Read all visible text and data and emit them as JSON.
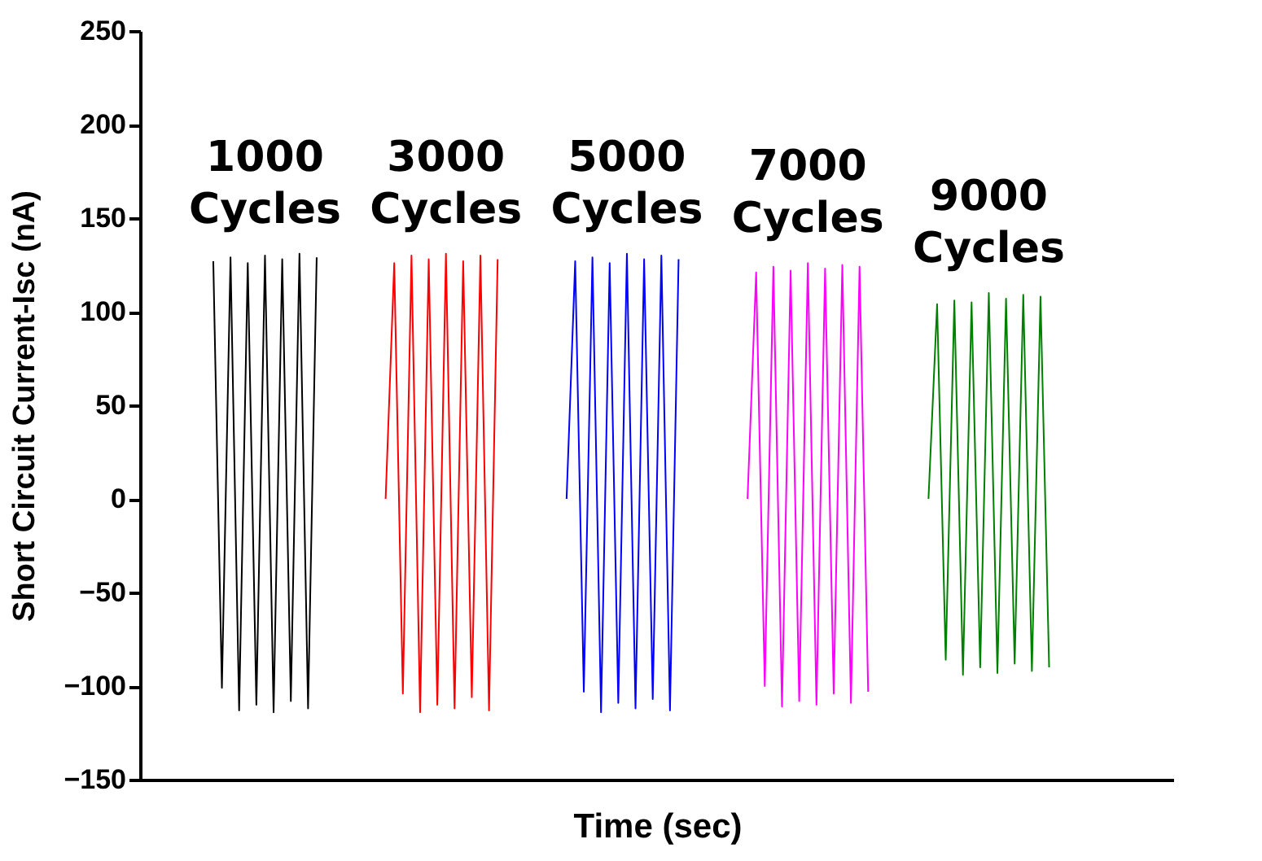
{
  "chart_data": {
    "type": "line",
    "xlabel": "Time (sec)",
    "ylabel": "Short Circuit Current-Isc (nA)",
    "ylim": [
      -150,
      250
    ],
    "yticks": [
      -150,
      -100,
      -50,
      0,
      50,
      100,
      150,
      200,
      250
    ],
    "grid": false,
    "legend": false,
    "tick_labels": "y",
    "marker": "none",
    "line_style": "solid",
    "categories": [
      null,
      null,
      null,
      null,
      null,
      null,
      null,
      null,
      null,
      null,
      null,
      null,
      null,
      null,
      null,
      null,
      null,
      null,
      null,
      null,
      null,
      null,
      null,
      null,
      null,
      null,
      null,
      null,
      null,
      null,
      null,
      null,
      null,
      null,
      null,
      null,
      null,
      null,
      null,
      null,
      null,
      null,
      null,
      null,
      null,
      null,
      null,
      null,
      null,
      null,
      null,
      null,
      null,
      null,
      null,
      null,
      null,
      null,
      null,
      null,
      null,
      null,
      null,
      null,
      null,
      null,
      null,
      null,
      null,
      null,
      null,
      null,
      null,
      null,
      null,
      null,
      null,
      null,
      null,
      null,
      null,
      null,
      null,
      null,
      null,
      null,
      null,
      null,
      null,
      null,
      null,
      null,
      null,
      null,
      null,
      null,
      null,
      null,
      null,
      null,
      null,
      null,
      null,
      null,
      null,
      null,
      null,
      null,
      null,
      null,
      null,
      null,
      null,
      null,
      null,
      null,
      null,
      null,
      null,
      null
    ],
    "series": [
      {
        "name": "1000 Cycles",
        "color": "#000000",
        "values": [
          null,
          null,
          null,
          null,
          null,
          null,
          null,
          null,
          127,
          -101,
          129,
          -113,
          126,
          -110,
          130,
          -114,
          128,
          -108,
          131,
          -112,
          129,
          null,
          null,
          null,
          null,
          null,
          null,
          null,
          null,
          null,
          null,
          null,
          null,
          null,
          null,
          null,
          null,
          null,
          null,
          null,
          null,
          null,
          null,
          null,
          null,
          null,
          null,
          null,
          null,
          null,
          null,
          null,
          null,
          null,
          null,
          null,
          null,
          null,
          null,
          null,
          null,
          null,
          null,
          null,
          null,
          null,
          null,
          null,
          null,
          null,
          null,
          null,
          null,
          null,
          null,
          null,
          null,
          null,
          null,
          null,
          null,
          null,
          null,
          null,
          null,
          null,
          null,
          null,
          null,
          null,
          null,
          null,
          null,
          null,
          null,
          null,
          null,
          null,
          null,
          null,
          null,
          null,
          null,
          null,
          null,
          null,
          null,
          null,
          null,
          null,
          null,
          null,
          null,
          null,
          null,
          null,
          null,
          null,
          null,
          null
        ]
      },
      {
        "name": "3000 Cycles",
        "color": "#ff0000",
        "values": [
          null,
          null,
          null,
          null,
          null,
          null,
          null,
          null,
          null,
          null,
          null,
          null,
          null,
          null,
          null,
          null,
          null,
          null,
          null,
          null,
          null,
          null,
          null,
          null,
          null,
          null,
          null,
          null,
          0,
          126,
          -104,
          130,
          -114,
          128,
          -110,
          131,
          -112,
          127,
          -106,
          130,
          -113,
          128,
          null,
          null,
          null,
          null,
          null,
          null,
          null,
          null,
          null,
          null,
          null,
          null,
          null,
          null,
          null,
          null,
          null,
          null,
          null,
          null,
          null,
          null,
          null,
          null,
          null,
          null,
          null,
          null,
          null,
          null,
          null,
          null,
          null,
          null,
          null,
          null,
          null,
          null,
          null,
          null,
          null,
          null,
          null,
          null,
          null,
          null,
          null,
          null,
          null,
          null,
          null,
          null,
          null,
          null,
          null,
          null,
          null,
          null,
          null,
          null,
          null,
          null,
          null,
          null,
          null,
          null,
          null,
          null,
          null,
          null,
          null,
          null,
          null,
          null,
          null,
          null,
          null,
          null
        ]
      },
      {
        "name": "5000 Cycles",
        "color": "#0000ff",
        "values": [
          null,
          null,
          null,
          null,
          null,
          null,
          null,
          null,
          null,
          null,
          null,
          null,
          null,
          null,
          null,
          null,
          null,
          null,
          null,
          null,
          null,
          null,
          null,
          null,
          null,
          null,
          null,
          null,
          null,
          null,
          null,
          null,
          null,
          null,
          null,
          null,
          null,
          null,
          null,
          null,
          null,
          null,
          null,
          null,
          null,
          null,
          null,
          null,
          null,
          0,
          127,
          -103,
          129,
          -114,
          126,
          -109,
          131,
          -112,
          128,
          -107,
          130,
          -113,
          128,
          null,
          null,
          null,
          null,
          null,
          null,
          null,
          null,
          null,
          null,
          null,
          null,
          null,
          null,
          null,
          null,
          null,
          null,
          null,
          null,
          null,
          null,
          null,
          null,
          null,
          null,
          null,
          null,
          null,
          null,
          null,
          null,
          null,
          null,
          null,
          null,
          null,
          null,
          null,
          null,
          null,
          null,
          null,
          null,
          null,
          null,
          null,
          null,
          null,
          null,
          null,
          null,
          null,
          null,
          null,
          null,
          null
        ]
      },
      {
        "name": "7000 Cycles",
        "color": "#ff00ff",
        "values": [
          null,
          null,
          null,
          null,
          null,
          null,
          null,
          null,
          null,
          null,
          null,
          null,
          null,
          null,
          null,
          null,
          null,
          null,
          null,
          null,
          null,
          null,
          null,
          null,
          null,
          null,
          null,
          null,
          null,
          null,
          null,
          null,
          null,
          null,
          null,
          null,
          null,
          null,
          null,
          null,
          null,
          null,
          null,
          null,
          null,
          null,
          null,
          null,
          null,
          null,
          null,
          null,
          null,
          null,
          null,
          null,
          null,
          null,
          null,
          null,
          null,
          null,
          null,
          null,
          null,
          null,
          null,
          null,
          null,
          null,
          0,
          121,
          -100,
          124,
          -111,
          122,
          -108,
          126,
          -110,
          123,
          -104,
          125,
          -109,
          124,
          -103,
          null,
          null,
          null,
          null,
          null,
          null,
          null,
          null,
          null,
          null,
          null,
          null,
          null,
          null,
          null,
          null,
          null,
          null,
          null,
          null,
          null,
          null,
          null,
          null,
          null,
          null,
          null,
          null,
          null,
          null,
          null,
          null,
          null,
          null,
          null
        ]
      },
      {
        "name": "9000 Cycles",
        "color": "#008000",
        "values": [
          null,
          null,
          null,
          null,
          null,
          null,
          null,
          null,
          null,
          null,
          null,
          null,
          null,
          null,
          null,
          null,
          null,
          null,
          null,
          null,
          null,
          null,
          null,
          null,
          null,
          null,
          null,
          null,
          null,
          null,
          null,
          null,
          null,
          null,
          null,
          null,
          null,
          null,
          null,
          null,
          null,
          null,
          null,
          null,
          null,
          null,
          null,
          null,
          null,
          null,
          null,
          null,
          null,
          null,
          null,
          null,
          null,
          null,
          null,
          null,
          null,
          null,
          null,
          null,
          null,
          null,
          null,
          null,
          null,
          null,
          null,
          null,
          null,
          null,
          null,
          null,
          null,
          null,
          null,
          null,
          null,
          null,
          null,
          null,
          null,
          null,
          null,
          null,
          null,
          null,
          null,
          0,
          104,
          -86,
          106,
          -94,
          105,
          -90,
          110,
          -93,
          107,
          -88,
          109,
          -92,
          108,
          -90,
          null,
          null,
          null,
          null,
          null,
          null,
          null,
          null,
          null,
          null,
          null,
          null,
          null,
          null
        ]
      }
    ]
  }
}
